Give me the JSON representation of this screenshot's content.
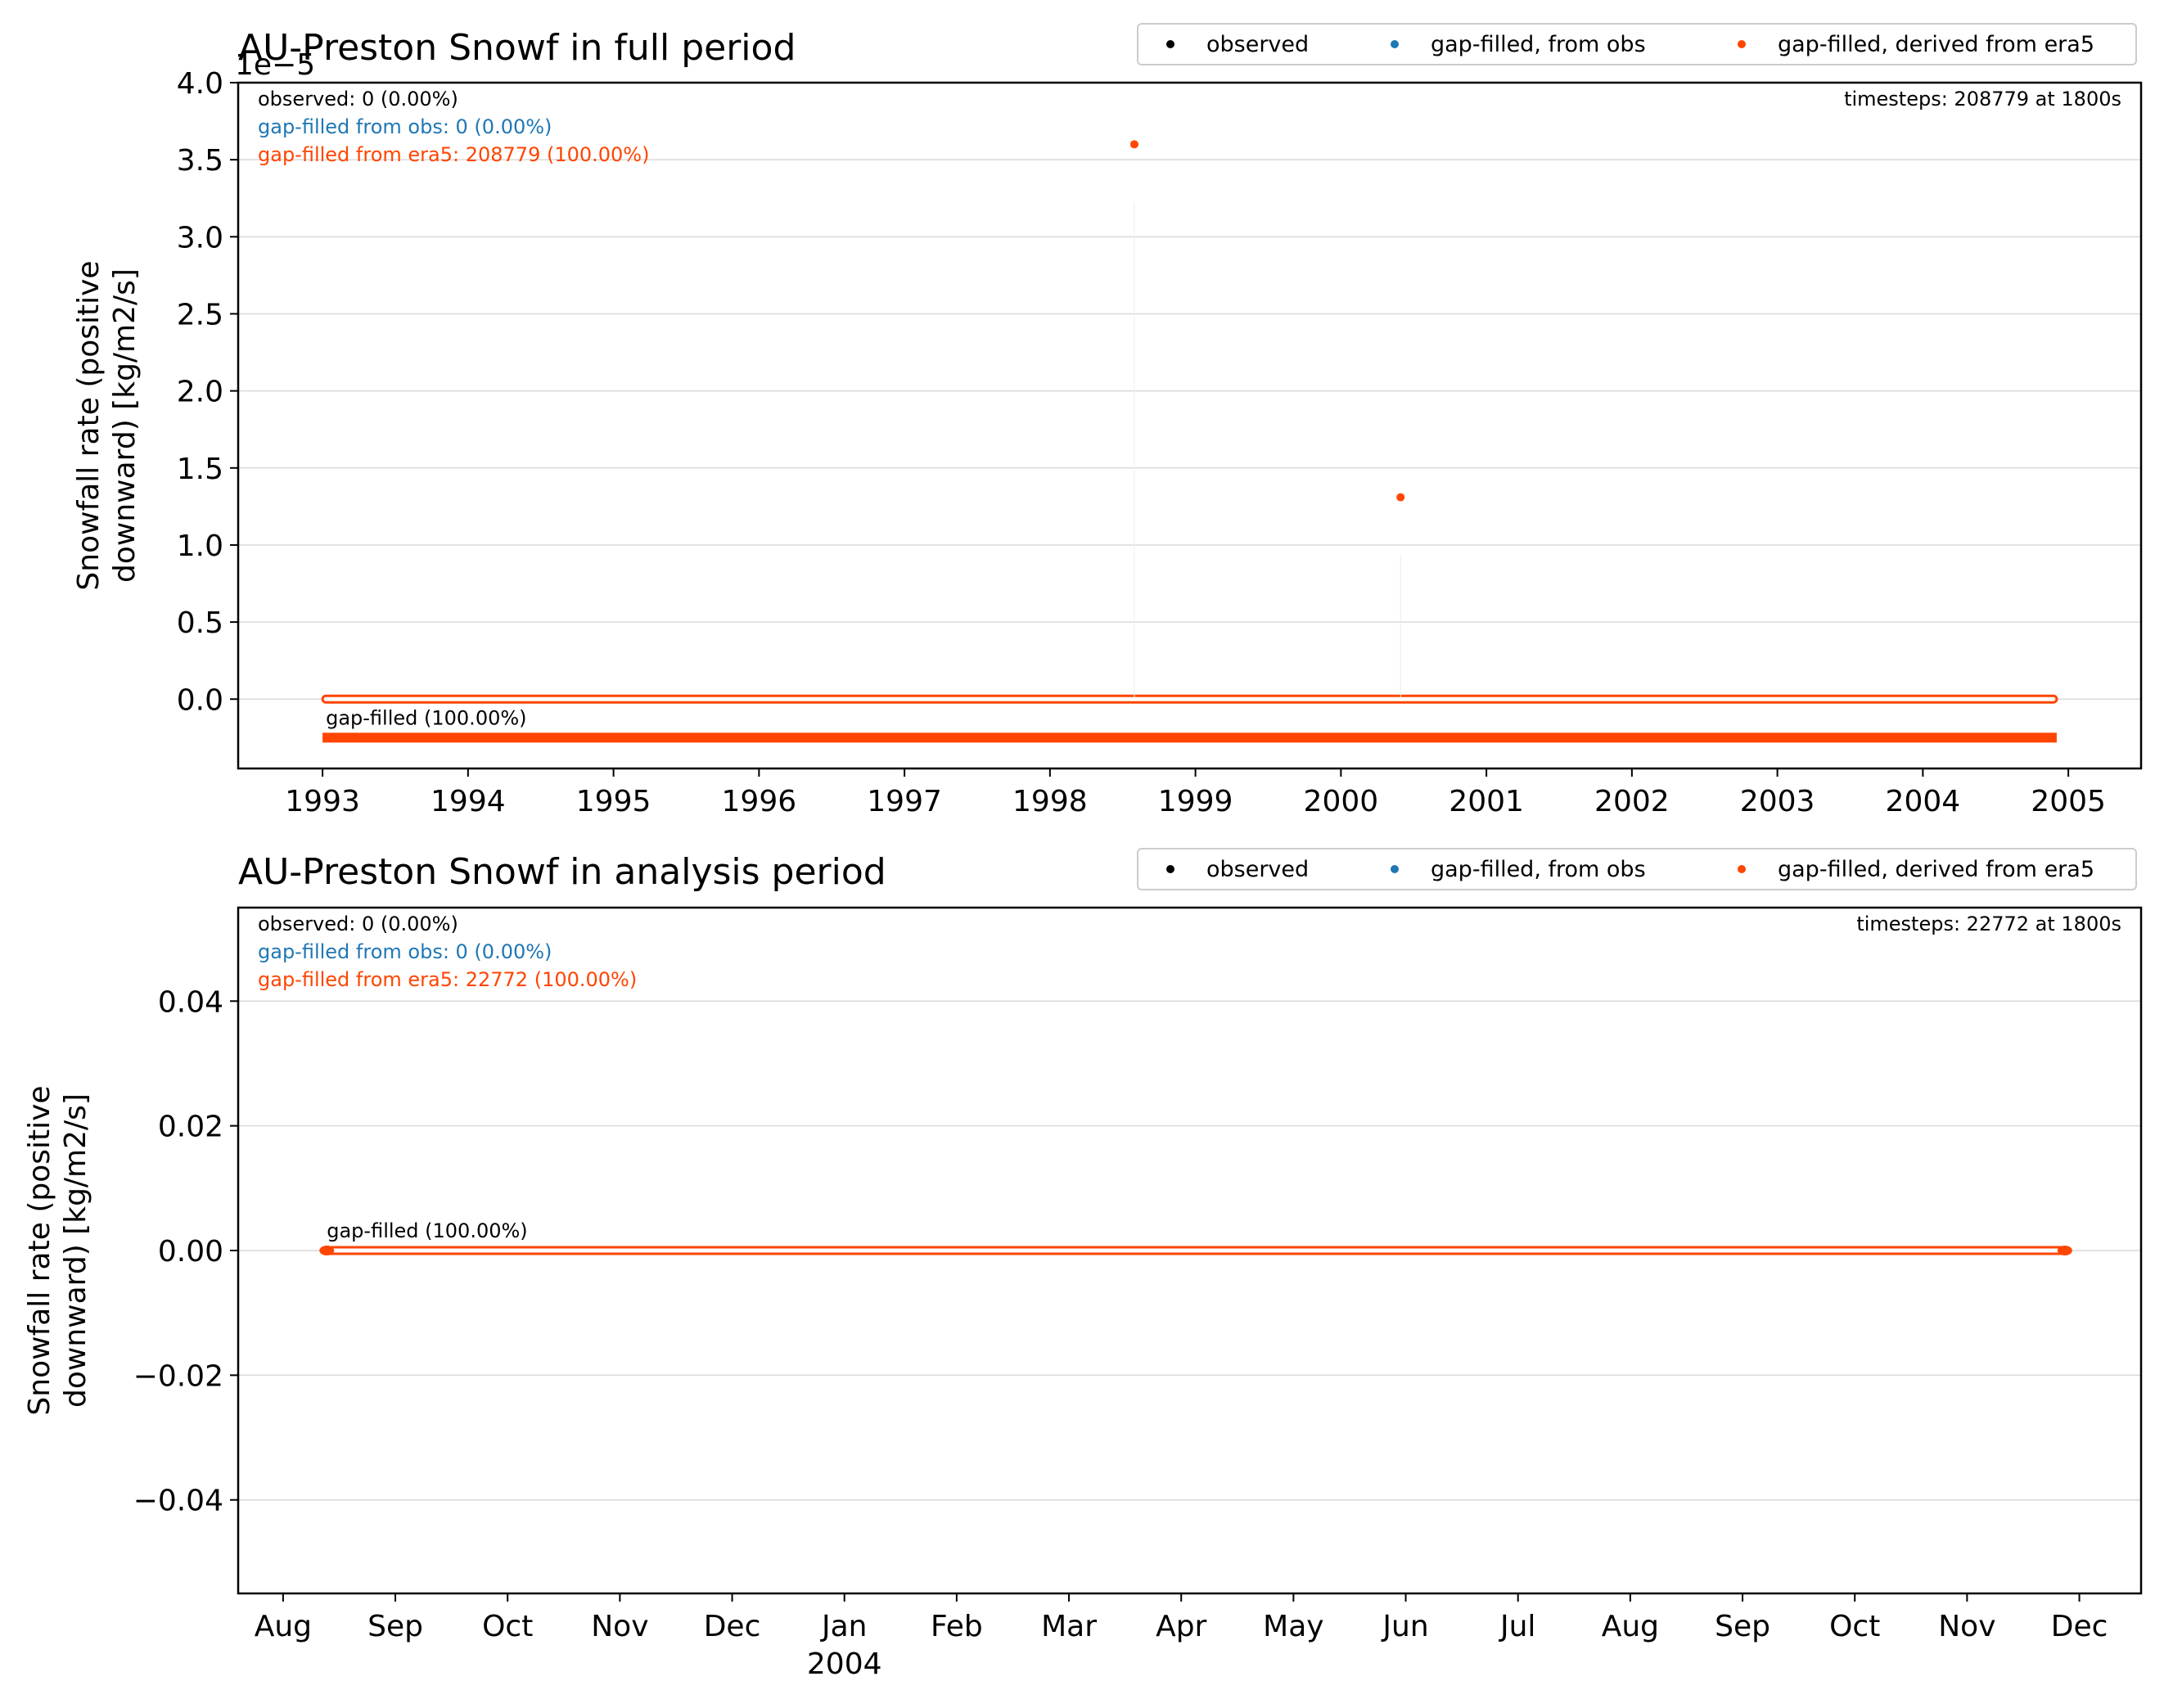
{
  "chart_data": [
    {
      "type": "scatter",
      "title": "AU-Preston Snowf in full period",
      "ylabel_lines": [
        "Snowfall rate (positive",
        "downward) [kg/m2/s]"
      ],
      "y_offset_label": "1e−5",
      "ylim": [
        -4.5e-06,
        4e-05
      ],
      "xlim": [
        1992.42,
        2005.5
      ],
      "yticks": [
        0,
        5e-06,
        1e-05,
        1.5e-05,
        2e-05,
        2.5e-05,
        3e-05,
        3.5e-05,
        4e-05
      ],
      "ytick_labels": [
        "0.0",
        "0.5",
        "1.0",
        "1.5",
        "2.0",
        "2.5",
        "3.0",
        "3.5",
        "4.0"
      ],
      "xticks": [
        1993,
        1994,
        1995,
        1996,
        1997,
        1998,
        1999,
        2000,
        2001,
        2002,
        2003,
        2004,
        2005
      ],
      "xtick_labels": [
        "1993",
        "1994",
        "1995",
        "1996",
        "1997",
        "1998",
        "1999",
        "2000",
        "2001",
        "2002",
        "2003",
        "2004",
        "2005"
      ],
      "xtick_sublabel": "",
      "grid": "horizontal",
      "legend_position": "above-right",
      "legend": [
        "observed",
        "gap-filled, from obs",
        "gap-filled, derived from era5"
      ],
      "stats": {
        "observed": "observed: 0 (0.00%)",
        "from_obs": "gap-filled from obs: 0 (0.00%)",
        "from_era5": "gap-filled from era5: 208779 (100.00%)",
        "timesteps": "timesteps: 208779 at 1800s"
      },
      "coverage_label": "gap-filled (100.00%)",
      "coverage_bar_y": -2.5e-06,
      "baseline_range": [
        1993.0,
        2004.92
      ],
      "series": [
        {
          "name": "gap-filled, derived from era5",
          "color": "#ff4500",
          "points": [
            [
              1998.58,
              3.6e-05
            ],
            [
              2000.41,
              1.31e-05
            ]
          ]
        }
      ]
    },
    {
      "type": "scatter",
      "title": "AU-Preston Snowf in analysis period",
      "ylabel_lines": [
        "Snowfall rate (positive",
        "downward) [kg/m2/s]"
      ],
      "y_offset_label": "",
      "ylim": [
        -0.055,
        0.055
      ],
      "xlim": [
        -0.4,
        16.55
      ],
      "yticks": [
        -0.04,
        -0.02,
        0.0,
        0.02,
        0.04
      ],
      "ytick_labels": [
        "−0.04",
        "−0.02",
        "0.00",
        "0.02",
        "0.04"
      ],
      "xticks": [
        0,
        1,
        2,
        3,
        4,
        5,
        6,
        7,
        8,
        9,
        10,
        11,
        12,
        13,
        14,
        15,
        16
      ],
      "xtick_labels": [
        "Aug",
        "Sep",
        "Oct",
        "Nov",
        "Dec",
        "Jan",
        "Feb",
        "Mar",
        "Apr",
        "May",
        "Jun",
        "Jul",
        "Aug",
        "Sep",
        "Oct",
        "Nov",
        "Dec"
      ],
      "xtick_sublabel": "2004",
      "xtick_sublabel_at": 5,
      "grid": "horizontal",
      "legend_position": "above-right",
      "legend": [
        "observed",
        "gap-filled, from obs",
        "gap-filled, derived from era5"
      ],
      "stats": {
        "observed": "observed: 0 (0.00%)",
        "from_obs": "gap-filled from obs: 0 (0.00%)",
        "from_era5": "gap-filled from era5: 22772 (100.00%)",
        "timesteps": "timesteps: 22772 at 1800s"
      },
      "coverage_label": "gap-filled (100.00%)",
      "coverage_bar_y": 0.0,
      "baseline_range": [
        0.36,
        15.9
      ],
      "series": [
        {
          "name": "gap-filled, derived from era5",
          "color": "#ff4500",
          "points": []
        }
      ]
    }
  ],
  "colors": {
    "observed": "#000000",
    "from_obs": "#1f77b4",
    "era5": "#ff4500",
    "grid": "#d9d9d9",
    "axes": "#000000"
  }
}
